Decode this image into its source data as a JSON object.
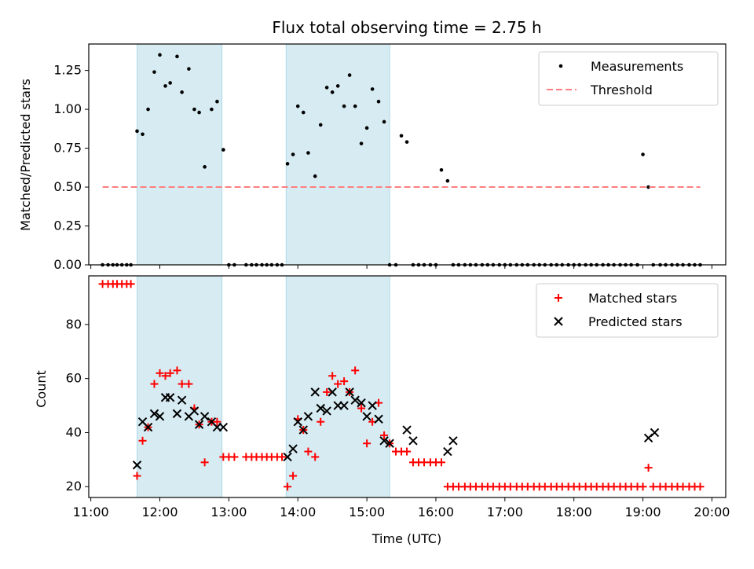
{
  "chart_data": [
    {
      "type": "scatter",
      "title": "Flux total observing time = 2.75 h",
      "ylabel": "Matched/Predicted stars",
      "ylim": [
        0,
        1.42
      ],
      "yticks": [
        "0.00",
        "0.25",
        "0.50",
        "0.75",
        "1.00",
        "1.25"
      ],
      "yticks_values": [
        0,
        0.25,
        0.5,
        0.75,
        1.0,
        1.25
      ],
      "xlim": [
        10.97,
        20.2
      ],
      "grid": false,
      "legend_position": "top-right",
      "shaded_intervals": [
        [
          11.67,
          12.9
        ],
        [
          13.83,
          15.33
        ]
      ],
      "shade_color": "#add8e6",
      "series": [
        {
          "name": "Measurements",
          "kind": "scatter",
          "color": "#000000",
          "x": [
            11.17,
            11.25,
            11.32,
            11.38,
            11.45,
            11.52,
            11.58,
            11.67,
            11.75,
            11.83,
            11.92,
            12.0,
            12.08,
            12.15,
            12.25,
            12.32,
            12.42,
            12.5,
            12.57,
            12.65,
            12.75,
            12.83,
            12.92,
            13.0,
            13.08,
            13.25,
            13.33,
            13.4,
            13.48,
            13.55,
            13.62,
            13.7,
            13.77,
            13.85,
            13.93,
            14.0,
            14.08,
            14.15,
            14.25,
            14.33,
            14.42,
            14.5,
            14.58,
            14.67,
            14.75,
            14.83,
            14.92,
            15.0,
            15.08,
            15.17,
            15.25,
            15.33,
            15.42,
            15.5,
            15.58,
            15.67,
            15.75,
            15.83,
            15.92,
            16.0,
            16.08,
            16.17,
            16.25,
            16.33,
            16.42,
            16.5,
            16.58,
            16.67,
            16.75,
            16.83,
            16.92,
            17.0,
            17.08,
            17.17,
            17.25,
            17.33,
            17.42,
            17.5,
            17.58,
            17.67,
            17.75,
            17.83,
            17.92,
            18.0,
            18.08,
            18.17,
            18.25,
            18.33,
            18.42,
            18.5,
            18.58,
            18.67,
            18.75,
            18.83,
            18.92,
            19.0,
            19.08,
            19.15,
            19.25,
            19.33,
            19.42,
            19.5,
            19.58,
            19.67,
            19.75,
            19.83
          ],
          "y": [
            0,
            0,
            0,
            0,
            0,
            0,
            0,
            0.86,
            0.84,
            1.0,
            1.24,
            1.35,
            1.15,
            1.17,
            1.34,
            1.11,
            1.26,
            1.0,
            0.98,
            0.63,
            1.0,
            1.05,
            0.74,
            0,
            0,
            0,
            0,
            0,
            0,
            0,
            0,
            0,
            0,
            0.65,
            0.71,
            1.02,
            0.98,
            0.72,
            0.57,
            0.9,
            1.14,
            1.11,
            1.15,
            1.02,
            1.22,
            1.02,
            0.78,
            0.88,
            1.13,
            1.05,
            0.92,
            0,
            0,
            0.83,
            0.79,
            0,
            0,
            0,
            0,
            0,
            0.61,
            0.54,
            0,
            0,
            0,
            0,
            0,
            0,
            0,
            0,
            0,
            0,
            0,
            0,
            0,
            0,
            0,
            0,
            0,
            0,
            0,
            0,
            0,
            0,
            0,
            0,
            0,
            0,
            0,
            0,
            0,
            0,
            0,
            0,
            0,
            0.71,
            0.5,
            0,
            0,
            0,
            0,
            0,
            0,
            0,
            0,
            0
          ]
        },
        {
          "name": "Threshold",
          "kind": "line",
          "style": "dashed",
          "color": "#ff7f7f",
          "x": [
            11.17,
            19.83
          ],
          "y": [
            0.5,
            0.5
          ]
        }
      ]
    },
    {
      "type": "scatter",
      "xlabel": "Time (UTC)",
      "ylabel": "Count",
      "ylim": [
        16,
        98
      ],
      "yticks": [
        "20",
        "40",
        "60",
        "80"
      ],
      "yticks_values": [
        20,
        40,
        60,
        80
      ],
      "xlim": [
        10.97,
        20.2
      ],
      "xticks": [
        "11:00",
        "12:00",
        "13:00",
        "14:00",
        "15:00",
        "16:00",
        "17:00",
        "18:00",
        "19:00",
        "20:00"
      ],
      "xticks_values": [
        11,
        12,
        13,
        14,
        15,
        16,
        17,
        18,
        19,
        20
      ],
      "grid": false,
      "legend_position": "top-right",
      "shaded_intervals": [
        [
          11.67,
          12.9
        ],
        [
          13.83,
          15.33
        ]
      ],
      "shade_color": "#add8e6",
      "series": [
        {
          "name": "Matched stars",
          "marker": "plus",
          "color": "#ff0000",
          "x": [
            11.17,
            11.25,
            11.32,
            11.38,
            11.45,
            11.52,
            11.58,
            11.67,
            11.75,
            11.83,
            11.92,
            12.0,
            12.08,
            12.15,
            12.25,
            12.32,
            12.42,
            12.5,
            12.57,
            12.65,
            12.75,
            12.83,
            12.92,
            13.0,
            13.08,
            13.25,
            13.33,
            13.4,
            13.48,
            13.55,
            13.62,
            13.7,
            13.77,
            13.85,
            13.93,
            14.0,
            14.08,
            14.15,
            14.25,
            14.33,
            14.42,
            14.5,
            14.58,
            14.67,
            14.75,
            14.83,
            14.92,
            15.0,
            15.08,
            15.17,
            15.25,
            15.33,
            15.42,
            15.5,
            15.58,
            15.67,
            15.75,
            15.83,
            15.92,
            16.0,
            16.08,
            16.17,
            16.25,
            16.33,
            16.42,
            16.5,
            16.58,
            16.67,
            16.75,
            16.83,
            16.92,
            17.0,
            17.08,
            17.17,
            17.25,
            17.33,
            17.42,
            17.5,
            17.58,
            17.67,
            17.75,
            17.83,
            17.92,
            18.0,
            18.08,
            18.17,
            18.25,
            18.33,
            18.42,
            18.5,
            18.58,
            18.67,
            18.75,
            18.83,
            18.92,
            19.0,
            19.08,
            19.15,
            19.25,
            19.33,
            19.42,
            19.5,
            19.58,
            19.67,
            19.75,
            19.83
          ],
          "y": [
            95,
            95,
            95,
            95,
            95,
            95,
            95,
            24,
            37,
            42,
            58,
            62,
            61,
            62,
            63,
            58,
            58,
            49,
            43,
            29,
            44,
            44,
            31,
            31,
            31,
            31,
            31,
            31,
            31,
            31,
            31,
            31,
            31,
            20,
            24,
            45,
            41,
            33,
            31,
            44,
            55,
            61,
            58,
            59,
            55,
            63,
            49,
            36,
            44,
            51,
            39,
            36,
            33,
            33,
            33,
            29,
            29,
            29,
            29,
            29,
            29,
            20,
            20,
            20,
            20,
            20,
            20,
            20,
            20,
            20,
            20,
            20,
            20,
            20,
            20,
            20,
            20,
            20,
            20,
            20,
            20,
            20,
            20,
            20,
            20,
            20,
            20,
            20,
            20,
            20,
            20,
            20,
            20,
            20,
            20,
            20,
            27,
            20,
            20,
            20,
            20,
            20,
            20,
            20,
            20,
            20
          ]
        },
        {
          "name": "Predicted stars",
          "marker": "x",
          "color": "#000000",
          "x": [
            11.67,
            11.75,
            11.83,
            11.92,
            12.0,
            12.08,
            12.15,
            12.25,
            12.32,
            12.42,
            12.5,
            12.57,
            12.65,
            12.75,
            12.83,
            12.92,
            13.85,
            13.93,
            14.0,
            14.08,
            14.15,
            14.25,
            14.33,
            14.42,
            14.5,
            14.58,
            14.67,
            14.75,
            14.83,
            14.92,
            15.0,
            15.08,
            15.17,
            15.25,
            15.33,
            15.58,
            15.67,
            16.17,
            16.25,
            19.08,
            19.17
          ],
          "y": [
            28,
            44,
            42,
            47,
            46,
            53,
            53,
            47,
            52,
            46,
            48,
            43,
            46,
            44,
            42,
            42,
            31,
            34,
            44,
            41,
            46,
            55,
            49,
            48,
            55,
            50,
            50,
            55,
            52,
            51,
            46,
            50,
            45,
            37,
            36,
            41,
            37,
            33,
            37,
            38,
            40
          ]
        }
      ]
    }
  ]
}
